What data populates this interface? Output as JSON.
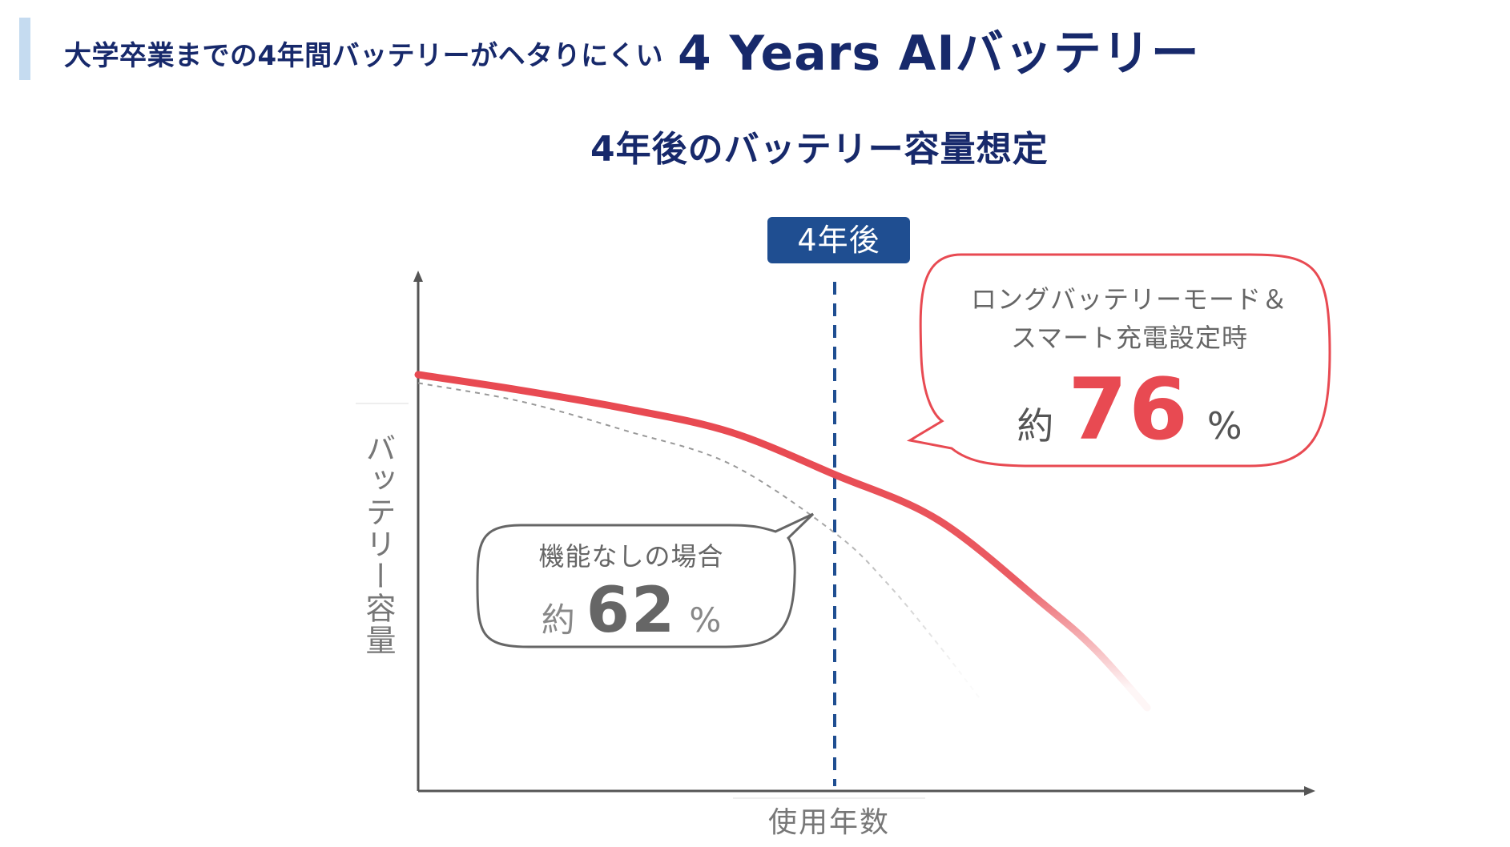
{
  "header": {
    "small": "大学卒業までの4年間バッテリーがヘタりにくい",
    "big": "4 Years AIバッテリー"
  },
  "subtitle": "4年後のバッテリー容量想定",
  "colors": {
    "navy": "#17296b",
    "marker_blue": "#1f4e91",
    "accent_red": "#e84a52",
    "gray_text": "#666666"
  },
  "chart_data": {
    "type": "line",
    "title": "4年後のバッテリー容量想定",
    "xlabel": "使用年数",
    "ylabel": "バッテリー容量",
    "x_unit": "years",
    "y_unit": "%",
    "xlim": [
      0,
      8
    ],
    "ylim": [
      0,
      125
    ],
    "grid": false,
    "series": [
      {
        "name": "ロングバッテリーモード＆スマート充電設定時",
        "style": "solid",
        "color": "#e84a52",
        "x": [
          0,
          1,
          2,
          3,
          4,
          5,
          6,
          6.5,
          7
        ],
        "y": [
          100,
          96.2,
          91.8,
          86.2,
          76,
          65,
          45,
          34,
          20
        ]
      },
      {
        "name": "機能なしの場合",
        "style": "dashed",
        "color": "#999999",
        "x": [
          0,
          1,
          2,
          3,
          4,
          4.5,
          5,
          5.4
        ],
        "y": [
          98,
          93.5,
          86.5,
          78.5,
          62,
          50,
          35,
          22
        ]
      }
    ],
    "marker": {
      "x": 4,
      "label": "4年後"
    },
    "annotations": [
      {
        "series": "ロングバッテリーモード＆スマート充電設定時",
        "line1": "ロングバッテリーモード＆",
        "line2": "スマート充電設定時",
        "prefix": "約",
        "value": "76",
        "unit": "%"
      },
      {
        "series": "機能なしの場合",
        "line1": "機能なしの場合",
        "prefix": "約",
        "value": "62",
        "unit": "%"
      }
    ]
  }
}
